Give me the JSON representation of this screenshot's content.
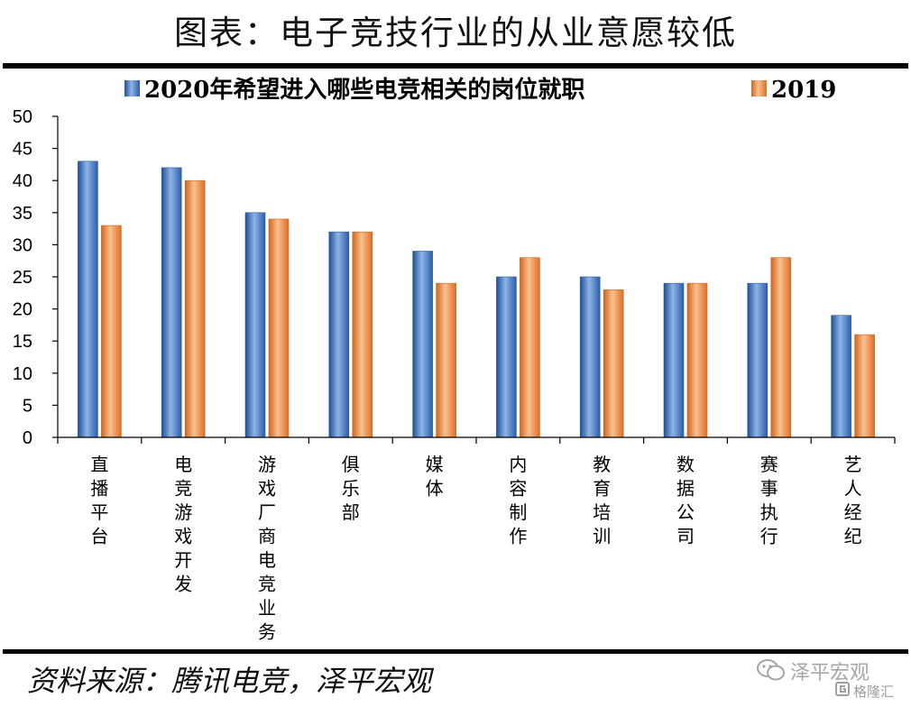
{
  "header": {
    "title": "图表：电子竞技行业的从业意愿较低"
  },
  "footer": {
    "source": "资料来源：腾讯电竞，泽平宏观"
  },
  "watermark": {
    "main": "泽平宏观",
    "sub": "格隆汇"
  },
  "colors": {
    "series1": "#4a7fc8",
    "series2": "#f08c4a"
  },
  "chart_data": {
    "type": "bar",
    "title": "",
    "categories": [
      "直播平台",
      "电竞游戏开发",
      "游戏厂商电竞业务",
      "俱乐部",
      "媒体",
      "内容制作",
      "教育培训",
      "数据公司",
      "赛事执行",
      "艺人经纪"
    ],
    "series": [
      {
        "name": "2020年希望进入哪些电竞相关的岗位就职",
        "values": [
          43,
          42,
          35,
          32,
          29,
          25,
          25,
          24,
          24,
          19
        ]
      },
      {
        "name": "2019",
        "values": [
          33,
          40,
          34,
          32,
          24,
          28,
          23,
          24,
          28,
          16
        ]
      }
    ],
    "yticks": [
      "0",
      "5",
      "10",
      "15",
      "20",
      "25",
      "30",
      "35",
      "40",
      "45",
      "50"
    ],
    "ylim": [
      0,
      50
    ],
    "xlabel": "",
    "ylabel": "",
    "legend": "top"
  }
}
